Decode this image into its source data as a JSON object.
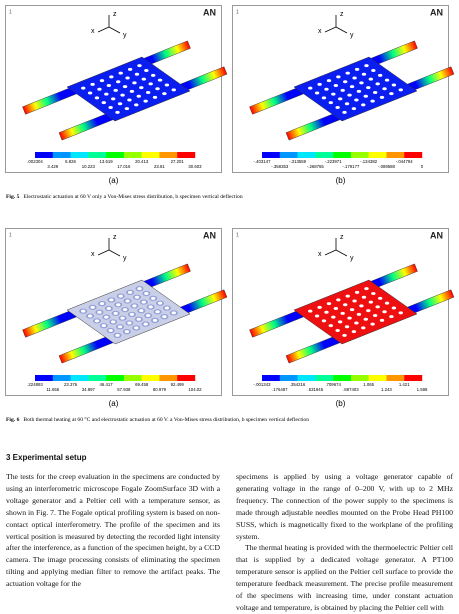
{
  "figures": [
    {
      "panels": [
        {
          "number": "1",
          "logo": "AN",
          "axes": {
            "x": "x",
            "y": "y",
            "z": "z"
          },
          "legend_top": [
            ".002304",
            "6.826",
            "13.619",
            "20.413",
            "27.201"
          ],
          "legend_bottom": [
            "3.429",
            "10.223",
            "17.016",
            "23.81",
            "30.603"
          ],
          "label": "(a)"
        },
        {
          "number": "1",
          "logo": "AN",
          "axes": {
            "x": "x",
            "y": "y",
            "z": "z"
          },
          "legend_top": [
            "-.403147",
            "-.313559",
            "-.223971",
            "-.134382",
            "-.044794"
          ],
          "legend_bottom": [
            "-.358353",
            "-.268765",
            "-.179177",
            "-.089588",
            "0"
          ],
          "label": "(b)"
        }
      ],
      "caption_number": "Fig. 5",
      "caption_text": "Electrostatic actuation at 60 V only a Von-Mises stress distribution, b specimen vertical deflection"
    },
    {
      "panels": [
        {
          "number": "1",
          "logo": "AN",
          "axes": {
            "x": "x",
            "y": "y",
            "z": "z"
          },
          "legend_top": [
            ".224893",
            "23.376",
            "46.417",
            "69.458",
            "92.499"
          ],
          "legend_bottom": [
            "11.656",
            "34.897",
            "57.938",
            "80.979",
            "104.02"
          ],
          "label": "(a)"
        },
        {
          "number": "1",
          "logo": "AN",
          "axes": {
            "x": "x",
            "y": "y",
            "z": "z"
          },
          "legend_top": [
            "-.001343",
            ".354216",
            ".709674",
            "1.065",
            "1.421"
          ],
          "legend_bottom": [
            ".176487",
            ".531945",
            ".887403",
            "1.243",
            "1.598"
          ],
          "label": "(b)"
        }
      ],
      "caption_number": "Fig. 6",
      "caption_text": "Both thermal heating at 60 °C and electrostatic actuation at 60 V. a Von-Mises stress distribution, b specimen vertical deflection"
    }
  ],
  "section": {
    "heading": "3 Experimental setup",
    "left_column": [
      "The tests for the creep evaluation in the specimens are conducted by using an interferometric microscope Fogale ZoomSurface 3D with a voltage generator and a Peltier cell with a temperature sensor, as shown in Fig. 7. The Fogale optical profiling system is based on non-contact optical interferometry. The profile of the specimen and its vertical position is measured by detecting the recorded light intensity after the interference, as a function of the specimen height, by a CCD camera. The image processing consists of eliminating the specimen tilting and applying median filter to remove the artifact peaks. The actuation voltage for the"
    ],
    "right_column": [
      "specimens is applied by using a voltage generator capable of generating voltage in the range of 0–200 V, with up to 2 MHz frequency. The connection of the power supply to the specimens is made through adjustable needles mounted on the Probe Head PH100 SUSS, which is magnetically fixed to the workplane of the profiling system.",
      "The thermal heating is provided with the thermoelectric Peltier cell that is supplied by a dedicated voltage generator. A PT100 temperature sensor is applied on the Peltier cell surface to provide the temperature feedback measurement. The precise profile measurement of the specimens with increasing time, under constant actuation voltage and temperature, is obtained by placing the Peltier cell with"
    ]
  }
}
